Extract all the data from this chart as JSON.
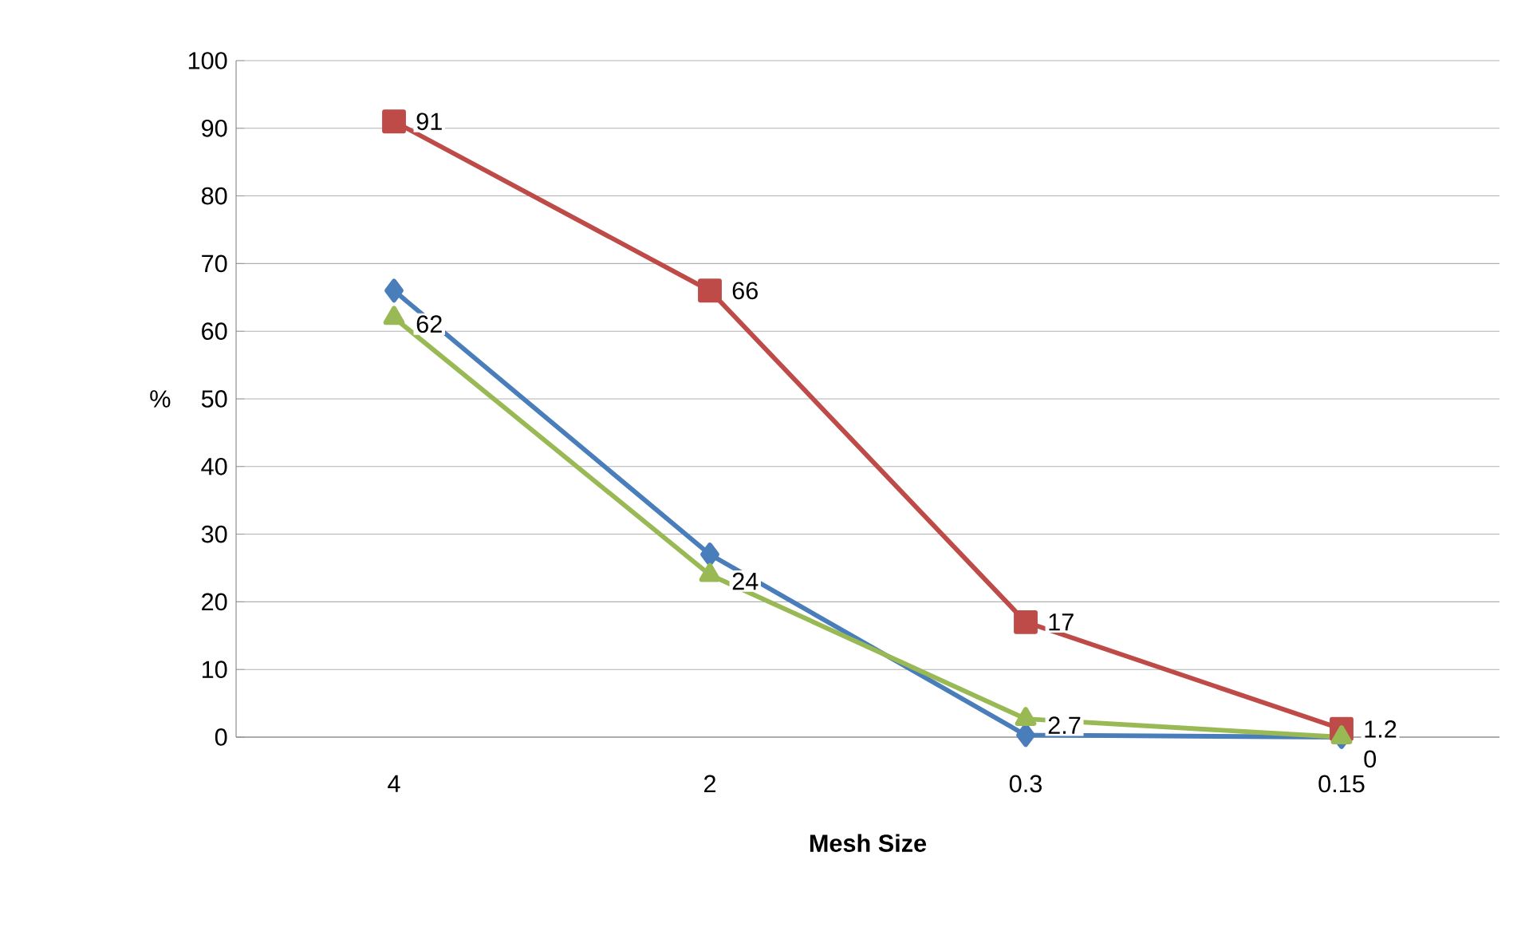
{
  "chart_data": {
    "type": "line",
    "xlabel": "Mesh Size",
    "ylabel": "%",
    "categories": [
      "4",
      "2",
      "0.3",
      "0.15"
    ],
    "series": [
      {
        "color": "#4a7ebb",
        "marker": "diamond",
        "values": [
          66,
          27,
          0.3,
          0
        ]
      },
      {
        "color": "#be4b48",
        "marker": "square",
        "values": [
          91,
          66,
          17,
          1.2
        ],
        "value_labels": [
          "91",
          "66",
          "17",
          "1.2"
        ]
      },
      {
        "color": "#98b954",
        "marker": "triangle",
        "values": [
          62,
          24,
          2.7,
          0
        ],
        "value_labels": [
          "62",
          "24",
          "2.7",
          "0"
        ]
      }
    ],
    "ylim": [
      0,
      100
    ],
    "yticks": [
      0,
      10,
      20,
      30,
      40,
      50,
      60,
      70,
      80,
      90,
      100
    ],
    "grid": "y"
  }
}
